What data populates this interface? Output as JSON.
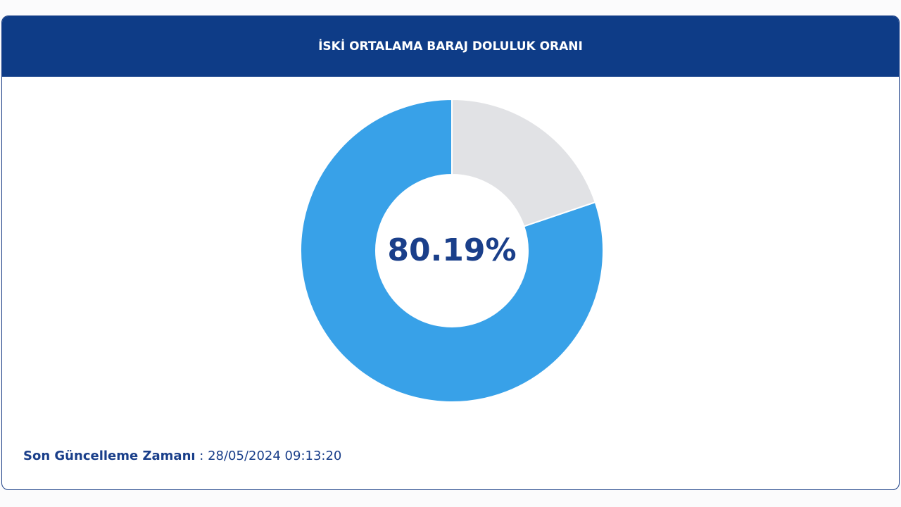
{
  "chart_data": {
    "type": "donut",
    "title": "İSKİ ORTALAMA BARAJ DOLULUK ORANI",
    "categories": [
      null,
      null
    ],
    "values": [
      80.19,
      19.81
    ],
    "value_labels": [
      "80.19%",
      null
    ],
    "colors": [
      "#38a1e8",
      "#e1e2e5"
    ],
    "update_label": "Son Güncelleme Zamanı",
    "update_time": " : 28/05/2024 09:13:20"
  }
}
